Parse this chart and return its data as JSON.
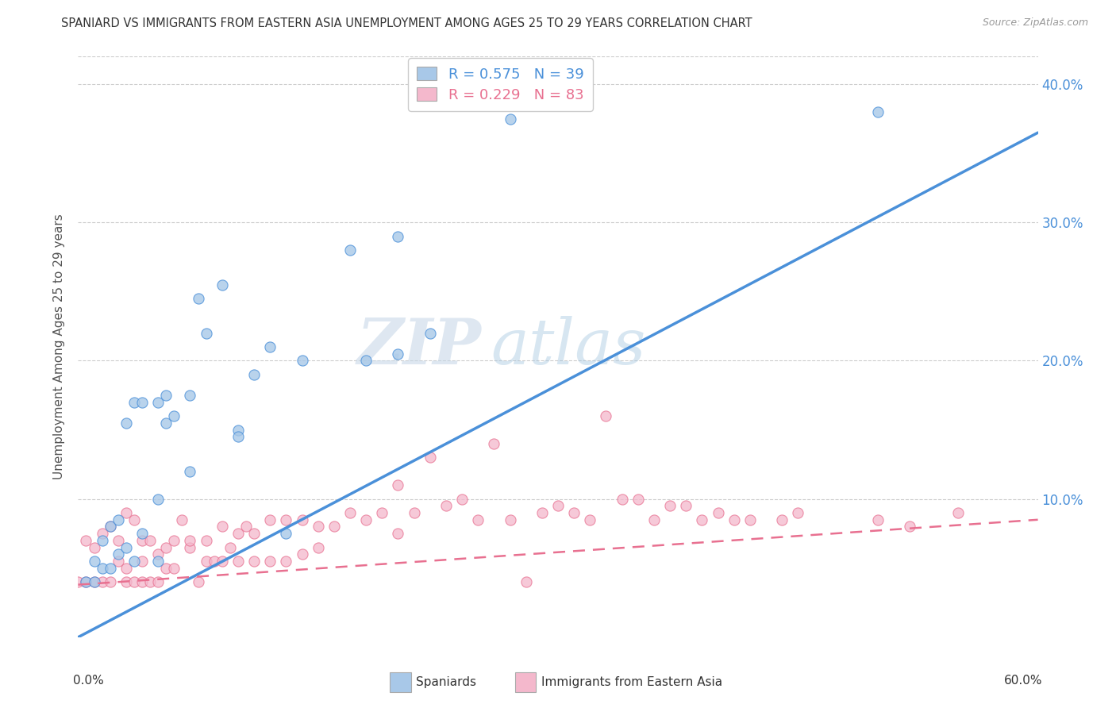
{
  "title": "SPANIARD VS IMMIGRANTS FROM EASTERN ASIA UNEMPLOYMENT AMONG AGES 25 TO 29 YEARS CORRELATION CHART",
  "source": "Source: ZipAtlas.com",
  "ylabel": "Unemployment Among Ages 25 to 29 years",
  "xlim": [
    0.0,
    0.6
  ],
  "ylim": [
    0.0,
    0.42
  ],
  "xticks": [
    0.0,
    0.1,
    0.2,
    0.3,
    0.4,
    0.5,
    0.6
  ],
  "yticks": [
    0.0,
    0.1,
    0.2,
    0.3,
    0.4
  ],
  "xtick_labels": [
    "0.0%",
    "",
    "",
    "",
    "",
    "",
    "60.0%"
  ],
  "legend_r1": "R = 0.575",
  "legend_n1": "N = 39",
  "legend_r2": "R = 0.229",
  "legend_n2": "N = 83",
  "blue_color": "#a8c8e8",
  "pink_color": "#f4b8cc",
  "blue_line_color": "#4a90d9",
  "pink_line_color": "#e87090",
  "watermark_zip": "ZIP",
  "watermark_atlas": "atlas",
  "blue_trend": [
    0.0,
    0.0,
    0.6,
    0.365
  ],
  "pink_trend": [
    0.0,
    0.038,
    0.6,
    0.085
  ],
  "spaniards_x": [
    0.005,
    0.01,
    0.01,
    0.015,
    0.015,
    0.02,
    0.02,
    0.025,
    0.025,
    0.03,
    0.03,
    0.035,
    0.035,
    0.04,
    0.04,
    0.05,
    0.05,
    0.05,
    0.055,
    0.055,
    0.06,
    0.07,
    0.07,
    0.075,
    0.08,
    0.09,
    0.1,
    0.1,
    0.11,
    0.12,
    0.13,
    0.14,
    0.17,
    0.18,
    0.2,
    0.22,
    0.27,
    0.5,
    0.2
  ],
  "spaniards_y": [
    0.04,
    0.04,
    0.055,
    0.05,
    0.07,
    0.05,
    0.08,
    0.06,
    0.085,
    0.065,
    0.155,
    0.055,
    0.17,
    0.075,
    0.17,
    0.055,
    0.1,
    0.17,
    0.155,
    0.175,
    0.16,
    0.12,
    0.175,
    0.245,
    0.22,
    0.255,
    0.15,
    0.145,
    0.19,
    0.21,
    0.075,
    0.2,
    0.28,
    0.2,
    0.205,
    0.22,
    0.375,
    0.38,
    0.29
  ],
  "immigrants_x": [
    0.0,
    0.005,
    0.005,
    0.01,
    0.01,
    0.015,
    0.015,
    0.02,
    0.02,
    0.025,
    0.025,
    0.03,
    0.03,
    0.03,
    0.035,
    0.035,
    0.04,
    0.04,
    0.04,
    0.045,
    0.045,
    0.05,
    0.05,
    0.055,
    0.055,
    0.06,
    0.06,
    0.065,
    0.07,
    0.07,
    0.075,
    0.08,
    0.08,
    0.085,
    0.09,
    0.09,
    0.095,
    0.1,
    0.1,
    0.105,
    0.11,
    0.11,
    0.12,
    0.12,
    0.13,
    0.13,
    0.14,
    0.14,
    0.15,
    0.15,
    0.16,
    0.17,
    0.18,
    0.19,
    0.2,
    0.2,
    0.21,
    0.22,
    0.23,
    0.24,
    0.25,
    0.26,
    0.27,
    0.28,
    0.29,
    0.3,
    0.31,
    0.32,
    0.33,
    0.34,
    0.35,
    0.36,
    0.37,
    0.38,
    0.39,
    0.4,
    0.41,
    0.42,
    0.44,
    0.45,
    0.5,
    0.52,
    0.55
  ],
  "immigrants_y": [
    0.04,
    0.04,
    0.07,
    0.04,
    0.065,
    0.04,
    0.075,
    0.04,
    0.08,
    0.055,
    0.07,
    0.04,
    0.05,
    0.09,
    0.04,
    0.085,
    0.04,
    0.055,
    0.07,
    0.04,
    0.07,
    0.04,
    0.06,
    0.05,
    0.065,
    0.05,
    0.07,
    0.085,
    0.065,
    0.07,
    0.04,
    0.055,
    0.07,
    0.055,
    0.055,
    0.08,
    0.065,
    0.055,
    0.075,
    0.08,
    0.055,
    0.075,
    0.055,
    0.085,
    0.055,
    0.085,
    0.06,
    0.085,
    0.065,
    0.08,
    0.08,
    0.09,
    0.085,
    0.09,
    0.075,
    0.11,
    0.09,
    0.13,
    0.095,
    0.1,
    0.085,
    0.14,
    0.085,
    0.04,
    0.09,
    0.095,
    0.09,
    0.085,
    0.16,
    0.1,
    0.1,
    0.085,
    0.095,
    0.095,
    0.085,
    0.09,
    0.085,
    0.085,
    0.085,
    0.09,
    0.085,
    0.08,
    0.09
  ]
}
